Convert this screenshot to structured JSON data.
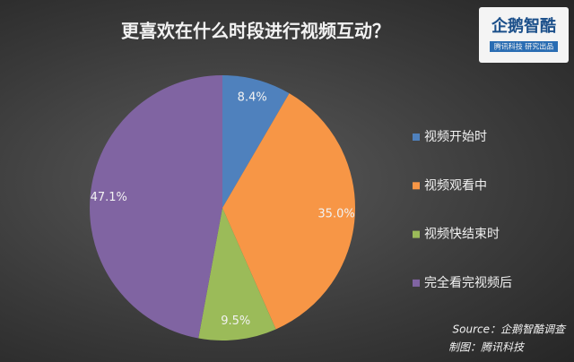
{
  "chart_data": {
    "type": "pie",
    "title": "更喜欢在什么时段进行视频互动？",
    "categories": [
      "视频开始时",
      "视频观看中",
      "视频快结束时",
      "完全看完视频后"
    ],
    "values": [
      8.4,
      35.0,
      9.5,
      47.1
    ],
    "value_labels": [
      "8.4%",
      "35.0%",
      "9.5%",
      "47.1%"
    ],
    "colors": [
      "#4f81bd",
      "#f79646",
      "#9bbb59",
      "#8064a2"
    ],
    "legend": "right",
    "source": "Source：企鹅智酷调查",
    "credit": "制图：腾讯科技",
    "logo": {
      "name": "企鹅智酷",
      "tagline": "腾讯科技 研究出品"
    }
  }
}
